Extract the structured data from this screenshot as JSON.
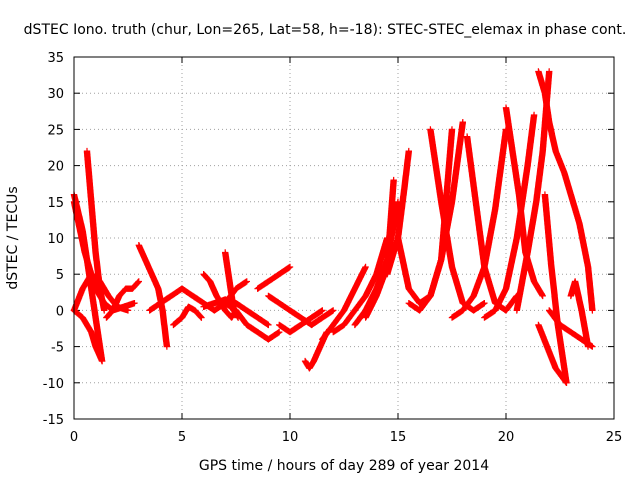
{
  "chart_data": {
    "type": "scatter",
    "title": "dSTEC Iono. truth (chur, Lon=265, Lat=58, h=-18): STEC-STEC_elemax in phase cont.",
    "xlabel": "GPS time / hours of day 289 of year 2014",
    "ylabel": "dSTEC  / TECUs",
    "xlim": [
      0,
      25
    ],
    "ylim": [
      -15,
      35
    ],
    "xticks": [
      0,
      5,
      10,
      15,
      20,
      25
    ],
    "yticks": [
      -15,
      -10,
      -5,
      0,
      5,
      10,
      15,
      20,
      25,
      30,
      35
    ],
    "grid": true,
    "marker": "plus",
    "color": "#ff0000",
    "series": [
      {
        "x": [
          0.0,
          0.4,
          0.8,
          1.1,
          1.3
        ],
        "y": [
          16,
          11,
          3,
          -3,
          -7
        ]
      },
      {
        "x": [
          0.0,
          0.5,
          1.0,
          1.4,
          1.8,
          2.3,
          2.8
        ],
        "y": [
          15,
          8,
          3,
          1,
          0,
          0.5,
          1
        ]
      },
      {
        "x": [
          0.0,
          0.4,
          0.8,
          1.2,
          1.6,
          2.0,
          2.5
        ],
        "y": [
          0,
          3,
          5,
          4,
          2,
          0.5,
          0
        ]
      },
      {
        "x": [
          0.0,
          0.4,
          0.8,
          1.0,
          1.3
        ],
        "y": [
          0,
          -1,
          -3,
          -5,
          -7
        ]
      },
      {
        "x": [
          0.6,
          0.8,
          1.0,
          1.2,
          1.4
        ],
        "y": [
          22,
          15,
          8,
          3,
          0
        ]
      },
      {
        "x": [
          1.5,
          1.8,
          2.1,
          2.4,
          2.7,
          3.0
        ],
        "y": [
          -1,
          0,
          2,
          3,
          3,
          4
        ]
      },
      {
        "x": [
          3.0,
          3.3,
          3.6,
          3.9,
          4.1,
          4.3
        ],
        "y": [
          9,
          7,
          5,
          3,
          0,
          -5
        ]
      },
      {
        "x": [
          3.5,
          4.0,
          4.5,
          5.0,
          5.5,
          6.0,
          6.5,
          7.0,
          7.5,
          8.0
        ],
        "y": [
          0,
          1,
          2,
          3,
          2,
          1,
          0,
          1,
          3,
          4
        ]
      },
      {
        "x": [
          4.6,
          5.0,
          5.3,
          5.6,
          5.9
        ],
        "y": [
          -2,
          -1,
          0.5,
          0,
          -1
        ]
      },
      {
        "x": [
          6.0,
          6.3,
          6.6,
          7.0,
          7.3,
          7.5
        ],
        "y": [
          5,
          4,
          2,
          0,
          -1,
          0
        ]
      },
      {
        "x": [
          6.0,
          6.5,
          7.0,
          7.5,
          8.0,
          8.5,
          9.0
        ],
        "y": [
          0.5,
          1,
          1.5,
          1,
          0,
          -1,
          -2
        ]
      },
      {
        "x": [
          7.0,
          7.2,
          7.4,
          7.6
        ],
        "y": [
          8,
          4,
          0,
          -1
        ]
      },
      {
        "x": [
          7.0,
          7.5,
          8.0,
          8.5,
          9.0,
          9.5
        ],
        "y": [
          1,
          0,
          -2,
          -3,
          -4,
          -3
        ]
      },
      {
        "x": [
          8.5,
          9.0,
          9.5,
          10.0
        ],
        "y": [
          3,
          4,
          5,
          6
        ]
      },
      {
        "x": [
          9.0,
          9.5,
          10.0,
          10.5,
          11.0,
          11.5,
          12.0
        ],
        "y": [
          2,
          1,
          0,
          -1,
          -2,
          -1,
          0
        ]
      },
      {
        "x": [
          9.5,
          10.0,
          10.5,
          11.0,
          11.5
        ],
        "y": [
          -2,
          -3,
          -2,
          -1,
          0
        ]
      },
      {
        "x": [
          10.7,
          10.9,
          11.1,
          11.4,
          11.7
        ],
        "y": [
          -7,
          -8,
          -7,
          -5,
          -3
        ]
      },
      {
        "x": [
          11.5,
          12.0,
          12.5,
          13.0,
          13.5
        ],
        "y": [
          -4,
          -2,
          0,
          3,
          6
        ]
      },
      {
        "x": [
          12.0,
          12.5,
          13.0,
          13.5,
          14.0,
          14.5
        ],
        "y": [
          -3,
          -2,
          0,
          2,
          5,
          10
        ]
      },
      {
        "x": [
          13.0,
          13.5,
          14.0,
          14.5,
          15.0
        ],
        "y": [
          -2,
          0,
          3,
          7,
          15
        ]
      },
      {
        "x": [
          13.5,
          14.0,
          14.5,
          14.8
        ],
        "y": [
          -1,
          2,
          6,
          18
        ]
      },
      {
        "x": [
          14.5,
          15.0,
          15.3,
          15.5
        ],
        "y": [
          5,
          10,
          17,
          22
        ]
      },
      {
        "x": [
          15.0,
          15.5,
          16.0,
          16.5,
          17.0,
          17.5,
          18.0
        ],
        "y": [
          10,
          3,
          1,
          2,
          7,
          15,
          26
        ]
      },
      {
        "x": [
          15.5,
          16.0,
          16.5,
          17.0,
          17.5
        ],
        "y": [
          1,
          0,
          2,
          7,
          25
        ]
      },
      {
        "x": [
          16.5,
          17.0,
          17.5,
          18.0,
          18.5,
          19.0
        ],
        "y": [
          25,
          15,
          6,
          1,
          0,
          1
        ]
      },
      {
        "x": [
          17.5,
          18.0,
          18.5,
          19.0,
          19.5,
          20.0
        ],
        "y": [
          -1,
          0,
          2,
          6,
          14,
          25
        ]
      },
      {
        "x": [
          18.2,
          18.6,
          19.0,
          19.5,
          20.0,
          20.5
        ],
        "y": [
          24,
          15,
          6,
          1,
          0,
          2
        ]
      },
      {
        "x": [
          19.0,
          19.5,
          20.0,
          20.5,
          21.0,
          21.3
        ],
        "y": [
          -1,
          0,
          3,
          10,
          20,
          27
        ]
      },
      {
        "x": [
          20.0,
          20.3,
          20.6,
          20.9,
          21.3,
          21.7
        ],
        "y": [
          28,
          22,
          16,
          8,
          4,
          2
        ]
      },
      {
        "x": [
          20.5,
          21.0,
          21.4,
          21.7,
          22.0
        ],
        "y": [
          0,
          8,
          15,
          22,
          33
        ]
      },
      {
        "x": [
          21.5,
          21.8,
          22.0,
          22.3,
          22.7,
          23.0,
          23.4,
          23.8,
          24.0
        ],
        "y": [
          33,
          30,
          26,
          22,
          19,
          16,
          12,
          6,
          0
        ]
      },
      {
        "x": [
          21.8,
          22.1,
          22.4,
          22.8
        ],
        "y": [
          16,
          6,
          -2,
          -10
        ]
      },
      {
        "x": [
          22.0,
          22.5,
          23.0,
          23.5,
          24.0
        ],
        "y": [
          0,
          -2,
          -3,
          -4,
          -5
        ]
      },
      {
        "x": [
          23.0,
          23.2,
          23.5,
          23.8
        ],
        "y": [
          2,
          4,
          0,
          -5
        ]
      },
      {
        "x": [
          21.5,
          21.9,
          22.3,
          22.8
        ],
        "y": [
          -2,
          -5,
          -8,
          -10
        ]
      }
    ]
  }
}
